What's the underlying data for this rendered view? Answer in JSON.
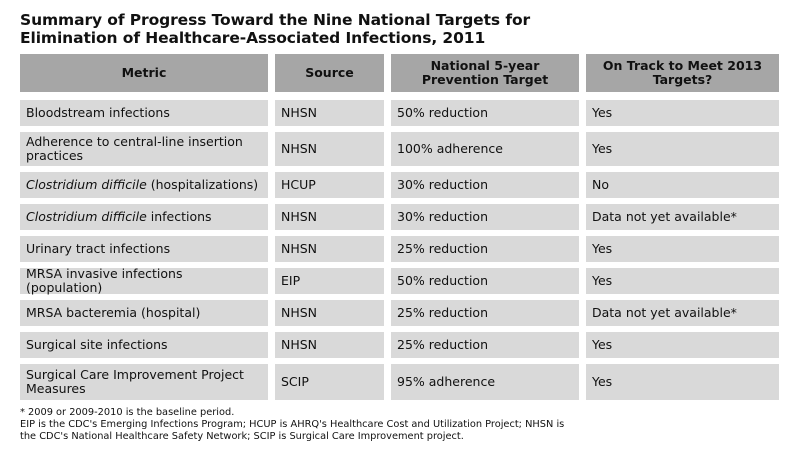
{
  "title": {
    "line1": "Summary of Progress Toward the Nine National Targets for",
    "line2": "Elimination of Healthcare-Associated Infections, 2011"
  },
  "headers": {
    "metric": "Metric",
    "source": "Source",
    "target": "National 5-year Prevention Target",
    "on_track": "On Track to Meet 2013 Targets?"
  },
  "rows": [
    {
      "metric_italic": "",
      "metric": "Bloodstream infections",
      "source": "NHSN",
      "target": "50% reduction",
      "on_track": "Yes"
    },
    {
      "metric_italic": "",
      "metric": "Adherence to central-line insertion practices",
      "source": "NHSN",
      "target": "100% adherence",
      "on_track": "Yes"
    },
    {
      "metric_italic": "Clostridium difficile",
      "metric": " (hospitalizations)",
      "source": "HCUP",
      "target": "30% reduction",
      "on_track": "No"
    },
    {
      "metric_italic": "Clostridium difficile",
      "metric": " infections",
      "source": "NHSN",
      "target": "30% reduction",
      "on_track": "Data not yet available*"
    },
    {
      "metric_italic": "",
      "metric": "Urinary tract infections",
      "source": "NHSN",
      "target": "25% reduction",
      "on_track": "Yes"
    },
    {
      "metric_italic": "",
      "metric": "MRSA invasive infections (population)",
      "source": "EIP",
      "target": "50% reduction",
      "on_track": "Yes"
    },
    {
      "metric_italic": "",
      "metric": "MRSA bacteremia (hospital)",
      "source": "NHSN",
      "target": "25% reduction",
      "on_track": "Data not yet available*"
    },
    {
      "metric_italic": "",
      "metric": "Surgical site infections",
      "source": "NHSN",
      "target": "25% reduction",
      "on_track": "Yes"
    },
    {
      "metric_italic": "",
      "metric": "Surgical Care Improvement Project Measures",
      "source": "SCIP",
      "target": "95% adherence",
      "on_track": "Yes"
    }
  ],
  "footnote": {
    "line1": "* 2009 or 2009-2010 is the baseline period.",
    "line2": "EIP is the CDC's Emerging Infections Program; HCUP is AHRQ's Healthcare Cost and Utilization Project; NHSN is",
    "line3": "the CDC's National Healthcare Safety Network; SCIP is Surgical Care Improvement project."
  }
}
